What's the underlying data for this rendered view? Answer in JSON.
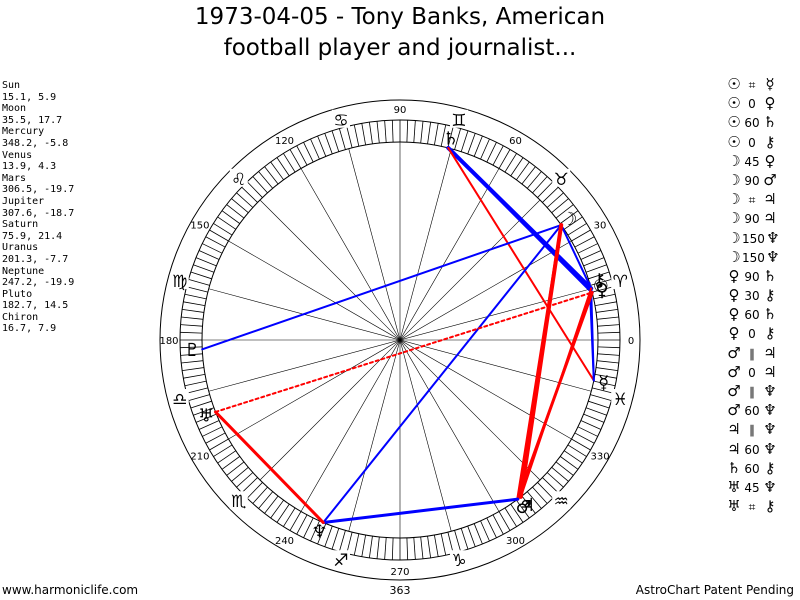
{
  "title_line1": "1973-04-05 - Tony Banks, American",
  "title_line2": "football player and journalist...",
  "planets": [
    {
      "name": "Sun",
      "coords": "15.1, 5.9",
      "glyph": "☉"
    },
    {
      "name": "Moon",
      "coords": "35.5, 17.7",
      "glyph": "☽"
    },
    {
      "name": "Mercury",
      "coords": "348.2, -5.8",
      "glyph": "☿"
    },
    {
      "name": "Venus",
      "coords": "13.9, 4.3",
      "glyph": "♀"
    },
    {
      "name": "Mars",
      "coords": "306.5, -19.7",
      "glyph": "♂"
    },
    {
      "name": "Jupiter",
      "coords": "307.6, -18.7",
      "glyph": "♃"
    },
    {
      "name": "Saturn",
      "coords": "75.9, 21.4",
      "glyph": "♄"
    },
    {
      "name": "Uranus",
      "coords": "201.3, -7.7",
      "glyph": "♅"
    },
    {
      "name": "Neptune",
      "coords": "247.2, -19.9",
      "glyph": "♆"
    },
    {
      "name": "Pluto",
      "coords": "182.7, 14.5",
      "glyph": "♇"
    },
    {
      "name": "Chiron",
      "coords": "16.7, 7.9",
      "glyph": "⚷"
    }
  ],
  "aspects": [
    {
      "p1": "☉",
      "a": "⌗",
      "p2": "☿"
    },
    {
      "p1": "☉",
      "a": "0",
      "p2": "♀"
    },
    {
      "p1": "☉",
      "a": "60",
      "p2": "♄"
    },
    {
      "p1": "☉",
      "a": "0",
      "p2": "⚷"
    },
    {
      "p1": "☽",
      "a": "45",
      "p2": "♀"
    },
    {
      "p1": "☽",
      "a": "90",
      "p2": "♂"
    },
    {
      "p1": "☽",
      "a": "⌗",
      "p2": "♃"
    },
    {
      "p1": "☽",
      "a": "90",
      "p2": "♃"
    },
    {
      "p1": "☽",
      "a": "150",
      "p2": "♆"
    },
    {
      "p1": "☽",
      "a": "150",
      "p2": "♆"
    },
    {
      "p1": "♀",
      "a": "90",
      "p2": "♄"
    },
    {
      "p1": "♀",
      "a": "30",
      "p2": "⚷"
    },
    {
      "p1": "♀",
      "a": "60",
      "p2": "♄"
    },
    {
      "p1": "♀",
      "a": "0",
      "p2": "⚷"
    },
    {
      "p1": "♂",
      "a": "∥",
      "p2": "♃"
    },
    {
      "p1": "♂",
      "a": "0",
      "p2": "♃"
    },
    {
      "p1": "♂",
      "a": "∥",
      "p2": "♆"
    },
    {
      "p1": "♂",
      "a": "60",
      "p2": "♆"
    },
    {
      "p1": "♃",
      "a": "∥",
      "p2": "♆"
    },
    {
      "p1": "♃",
      "a": "60",
      "p2": "♆"
    },
    {
      "p1": "♄",
      "a": "60",
      "p2": "⚷"
    },
    {
      "p1": "♅",
      "a": "45",
      "p2": "♆"
    },
    {
      "p1": "♅",
      "a": "⌗",
      "p2": "⚷"
    }
  ],
  "degree_labels": [
    "0",
    "30",
    "60",
    "90",
    "120",
    "150",
    "180",
    "210",
    "240",
    "270",
    "300",
    "330"
  ],
  "signs": [
    {
      "name": "Aries",
      "glyph": "♈",
      "deg": 15
    },
    {
      "name": "Taurus",
      "glyph": "♉",
      "deg": 45
    },
    {
      "name": "Gemini",
      "glyph": "♊",
      "deg": 75
    },
    {
      "name": "Cancer",
      "glyph": "♋",
      "deg": 105
    },
    {
      "name": "Leo",
      "glyph": "♌",
      "deg": 135
    },
    {
      "name": "Virgo",
      "glyph": "♍",
      "deg": 165
    },
    {
      "name": "Libra",
      "glyph": "♎",
      "deg": 195
    },
    {
      "name": "Scorpio",
      "glyph": "♏",
      "deg": 225
    },
    {
      "name": "Sagittarius",
      "glyph": "♐",
      "deg": 255
    },
    {
      "name": "Capricorn",
      "glyph": "♑",
      "deg": 285
    },
    {
      "name": "Aquarius",
      "glyph": "♒",
      "deg": 315
    },
    {
      "name": "Pisces",
      "glyph": "♓",
      "deg": 345
    }
  ],
  "aspect_lines": [
    {
      "from": "Saturn",
      "to": "Sun",
      "color": "#0000ff",
      "width": 4,
      "dash": false
    },
    {
      "from": "Saturn",
      "to": "Venus",
      "color": "#0000ff",
      "width": 3,
      "dash": false
    },
    {
      "from": "Saturn",
      "to": "Mercury",
      "color": "#ff0000",
      "width": 2,
      "dash": false
    },
    {
      "from": "Moon",
      "to": "Sun",
      "color": "#0000ff",
      "width": 2,
      "dash": false
    },
    {
      "from": "Moon",
      "to": "Pluto",
      "color": "#0000ff",
      "width": 2,
      "dash": false
    },
    {
      "from": "Moon",
      "to": "Neptune",
      "color": "#0000ff",
      "width": 2,
      "dash": false
    },
    {
      "from": "Moon",
      "to": "Jupiter",
      "color": "#ff0000",
      "width": 4,
      "dash": false
    },
    {
      "from": "Moon",
      "to": "Mars",
      "color": "#ff0000",
      "width": 3,
      "dash": false
    },
    {
      "from": "Chiron",
      "to": "Mercury",
      "color": "#0000ff",
      "width": 2,
      "dash": false
    },
    {
      "from": "Sun",
      "to": "Mercury",
      "color": "#0000ff",
      "width": 2,
      "dash": false
    },
    {
      "from": "Venus",
      "to": "Mars",
      "color": "#ff0000",
      "width": 3,
      "dash": false
    },
    {
      "from": "Sun",
      "to": "Jupiter",
      "color": "#ff0000",
      "width": 2,
      "dash": false
    },
    {
      "from": "Mars",
      "to": "Neptune",
      "color": "#0000ff",
      "width": 3,
      "dash": false
    },
    {
      "from": "Uranus",
      "to": "Neptune",
      "color": "#ff0000",
      "width": 3,
      "dash": false
    },
    {
      "from": "Uranus",
      "to": "Venus",
      "color": "#ff0000",
      "width": 2,
      "dash": true
    }
  ],
  "center_label": "363",
  "footer_left": "www.harmoniclife.com",
  "footer_right": "AstroChart Patent Pending",
  "colors": {
    "aspect_blue": "#0000ff",
    "aspect_red": "#ff0000",
    "ink": "#000000"
  }
}
